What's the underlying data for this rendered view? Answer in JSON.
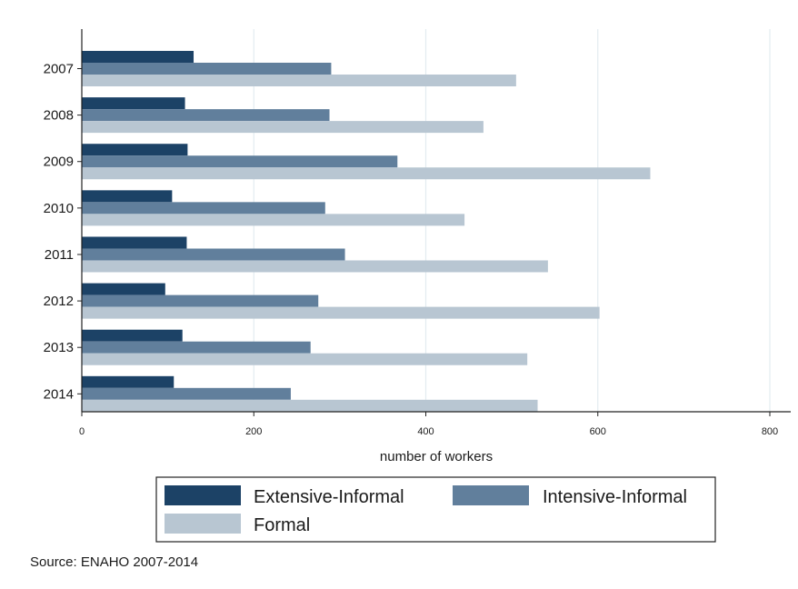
{
  "chart_data": {
    "type": "bar",
    "orientation": "horizontal",
    "categories": [
      "2007",
      "2008",
      "2009",
      "2010",
      "2011",
      "2012",
      "2013",
      "2014"
    ],
    "series": [
      {
        "name": "Extensive-Informal",
        "values": [
          130,
          120,
          123,
          105,
          122,
          97,
          117,
          107
        ]
      },
      {
        "name": "Intensive-Informal",
        "values": [
          290,
          288,
          367,
          283,
          306,
          275,
          266,
          243
        ]
      },
      {
        "name": "Formal",
        "values": [
          505,
          467,
          661,
          445,
          542,
          602,
          518,
          530
        ]
      }
    ],
    "xlabel": "number of workers",
    "ylabel": "",
    "xlim": [
      0,
      800
    ],
    "xticks": [
      0,
      200,
      400,
      600,
      800
    ],
    "grid": true,
    "legend_position": "bottom",
    "colors": [
      "#1c4266",
      "#617f9c",
      "#b8c6d2"
    ]
  },
  "source_note": "Source: ENAHO 2007-2014",
  "colors": {
    "grid": "#e3ecef",
    "axis": "#222222",
    "legend_border": "#222222"
  }
}
